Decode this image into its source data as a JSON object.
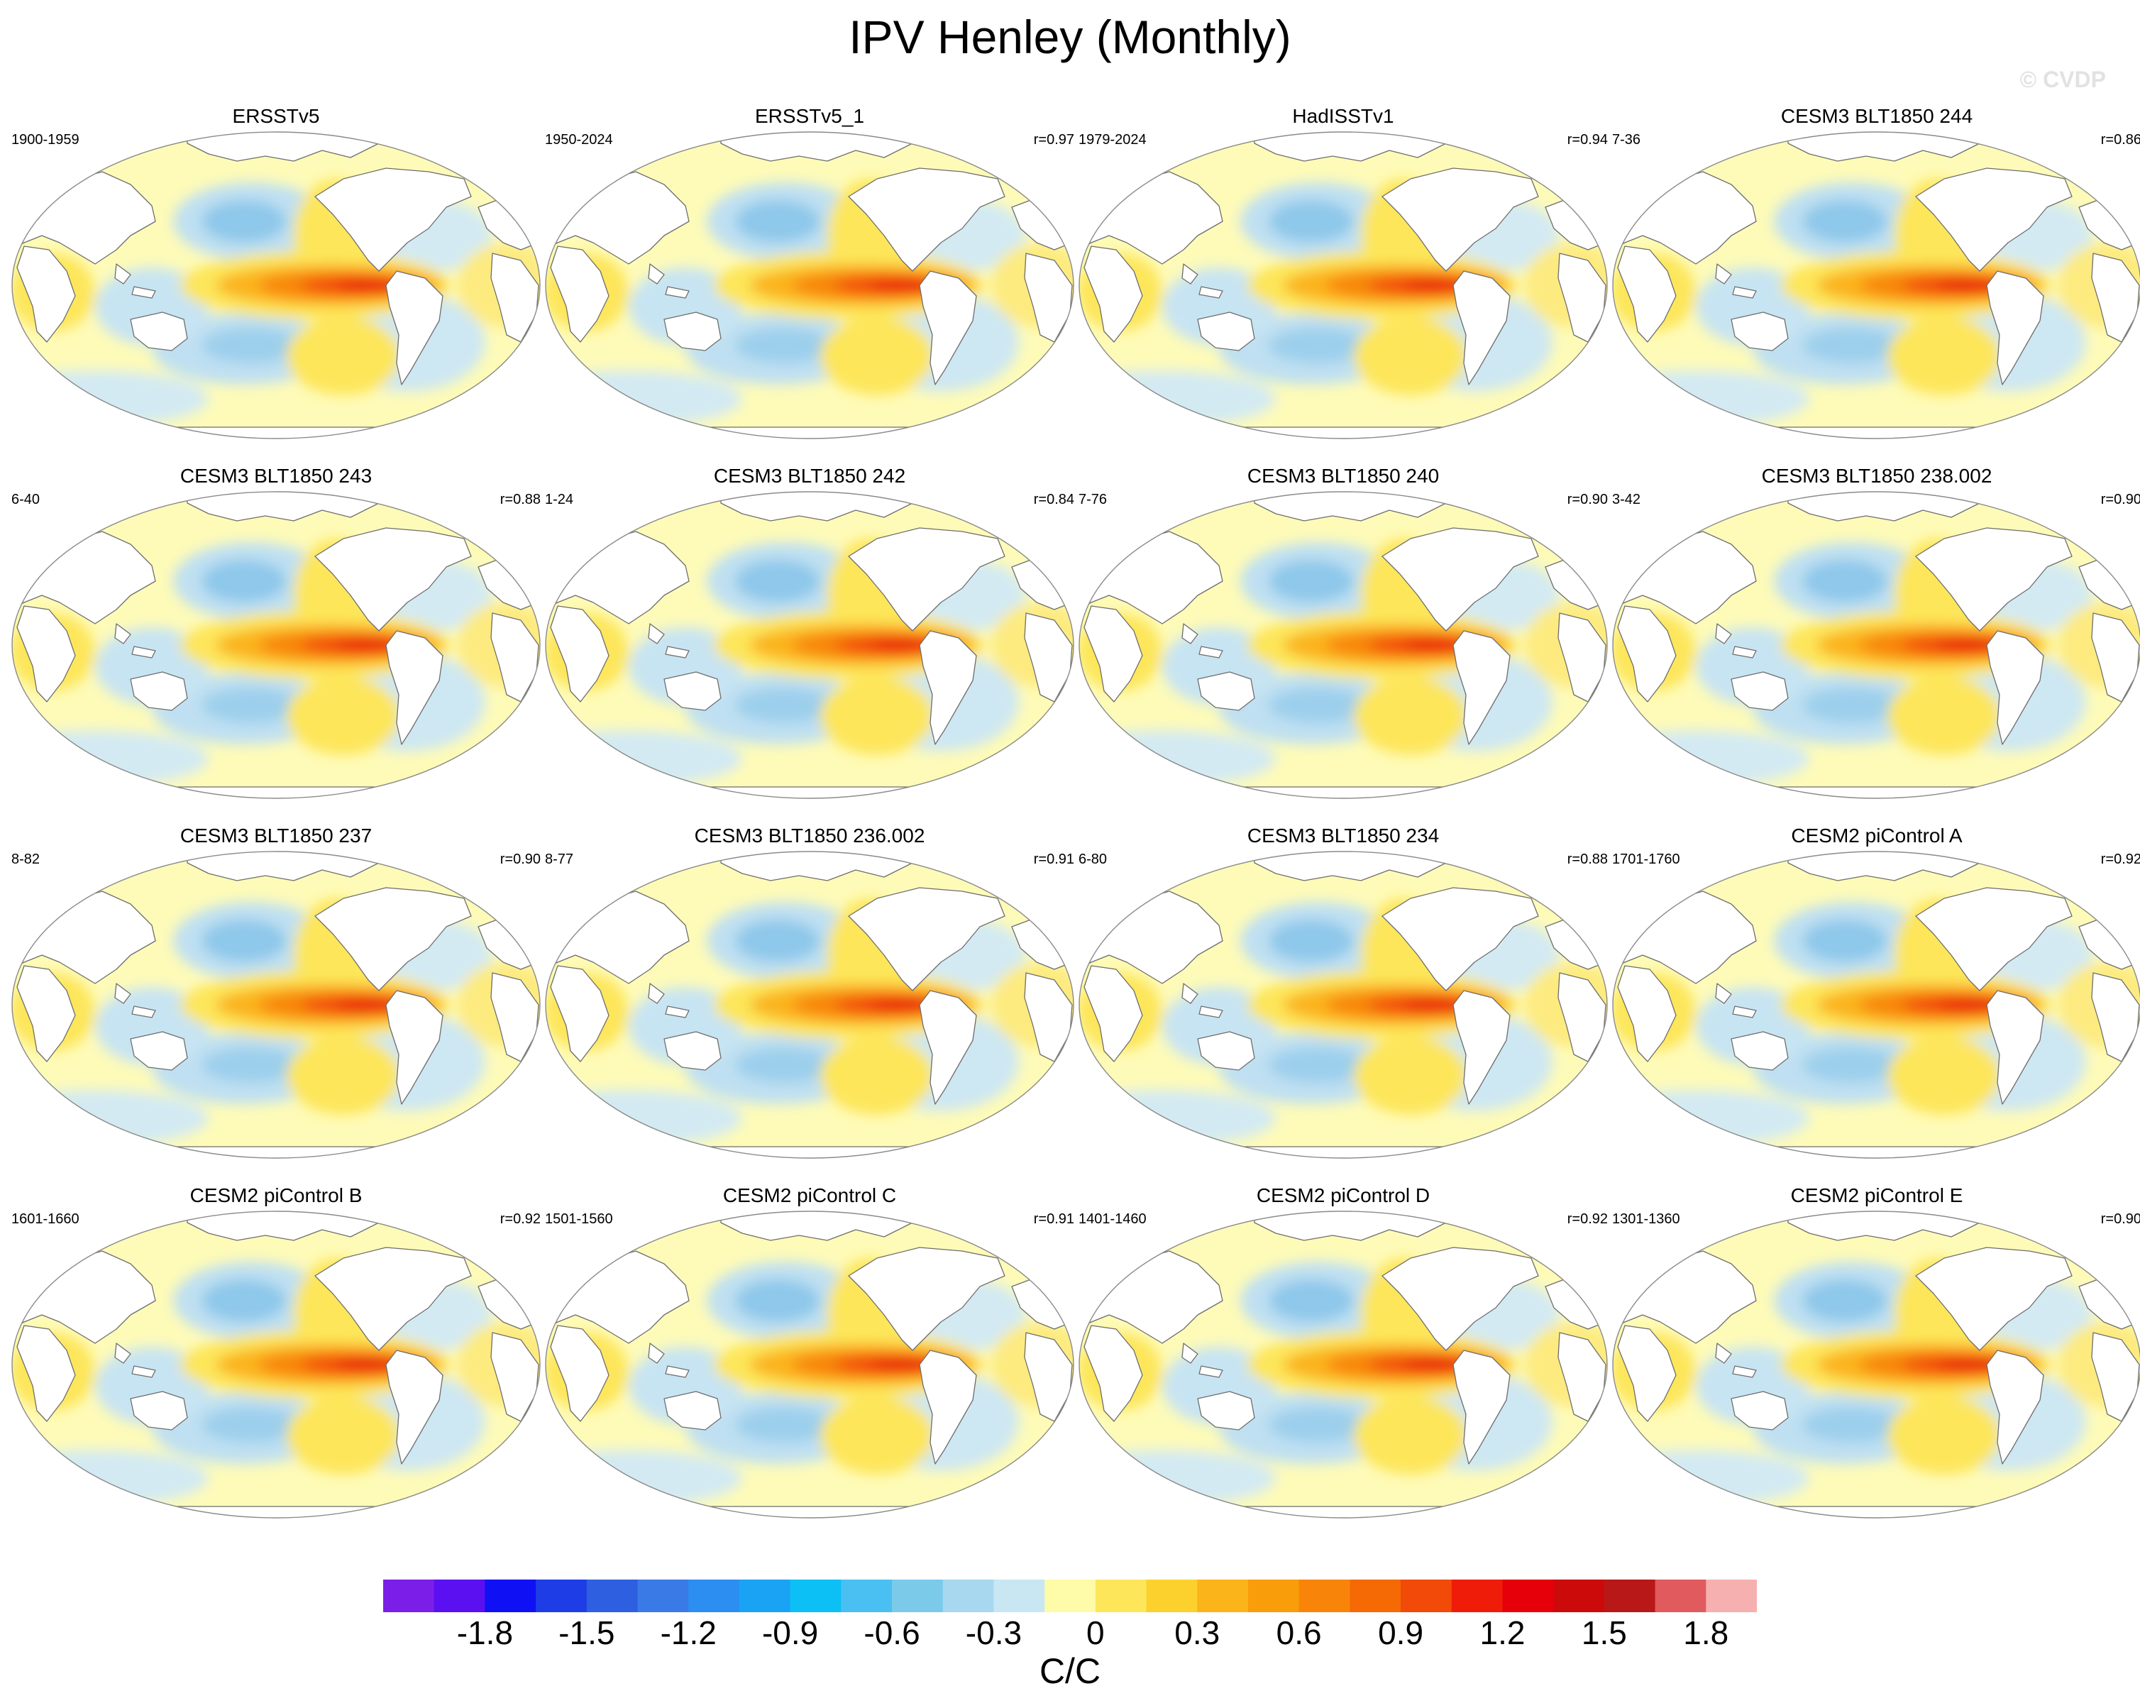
{
  "title": "IPV Henley (Monthly)",
  "watermark": "© CVDP",
  "panels": [
    {
      "title": "ERSSTv5",
      "period": "1900-1959",
      "corr": ""
    },
    {
      "title": "ERSSTv5_1",
      "period": "1950-2024",
      "corr": "r=0.97"
    },
    {
      "title": "HadISSTv1",
      "period": "1979-2024",
      "corr": "r=0.94"
    },
    {
      "title": "CESM3 BLT1850 244",
      "period": "7-36",
      "corr": "r=0.86"
    },
    {
      "title": "CESM3 BLT1850 243",
      "period": "6-40",
      "corr": "r=0.88"
    },
    {
      "title": "CESM3 BLT1850 242",
      "period": "1-24",
      "corr": "r=0.84"
    },
    {
      "title": "CESM3 BLT1850 240",
      "period": "7-76",
      "corr": "r=0.90"
    },
    {
      "title": "CESM3 BLT1850 238.002",
      "period": "3-42",
      "corr": "r=0.90"
    },
    {
      "title": "CESM3 BLT1850 237",
      "period": "8-82",
      "corr": "r=0.90"
    },
    {
      "title": "CESM3 BLT1850 236.002",
      "period": "8-77",
      "corr": "r=0.91"
    },
    {
      "title": "CESM3 BLT1850 234",
      "period": "6-80",
      "corr": "r=0.88"
    },
    {
      "title": "CESM2 piControl A",
      "period": "1701-1760",
      "corr": "r=0.92"
    },
    {
      "title": "CESM2 piControl B",
      "period": "1601-1660",
      "corr": "r=0.92"
    },
    {
      "title": "CESM2 piControl C",
      "period": "1501-1560",
      "corr": "r=0.91"
    },
    {
      "title": "CESM2 piControl D",
      "period": "1401-1460",
      "corr": "r=0.92"
    },
    {
      "title": "CESM2 piControl E",
      "period": "1301-1360",
      "corr": "r=0.90"
    }
  ],
  "colorbar": {
    "colors": [
      "#7b1fe8",
      "#5a10f0",
      "#1010f5",
      "#1e3de6",
      "#2e5fe0",
      "#3a7ae6",
      "#2b8ef0",
      "#1aa3f5",
      "#0cc0f5",
      "#4ac0f2",
      "#7ccaea",
      "#a8d8ef",
      "#c9e6f3",
      "#fefca8",
      "#fde65a",
      "#fcd12e",
      "#fbb41a",
      "#f99d0a",
      "#f8850a",
      "#f56a05",
      "#f24a08",
      "#f01c0a",
      "#e6000a",
      "#cd0a0a",
      "#b81818",
      "#e05a5e",
      "#f7b0b0"
    ],
    "tick_labels": [
      "-1.8",
      "-1.5",
      "-1.2",
      "-0.9",
      "-0.6",
      "-0.3",
      "0",
      "0.3",
      "0.6",
      "0.9",
      "1.2",
      "1.5",
      "1.8"
    ],
    "units": "C/C"
  }
}
